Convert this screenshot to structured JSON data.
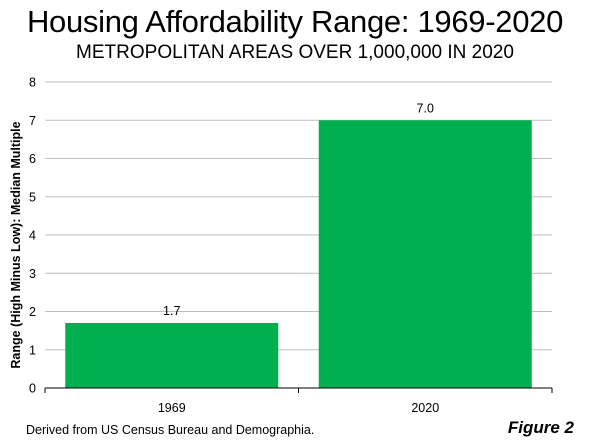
{
  "figure": {
    "source_note": "Derived from US Census Bureau and Demographia.",
    "figure_label": "Figure 2"
  },
  "chart_data": {
    "type": "bar",
    "title": "Housing Affordability Range: 1969-2020",
    "subtitle": "METROPOLITAN AREAS OVER 1,000,000 IN 2020",
    "xlabel": "",
    "ylabel": "Range (High Minus Low):  Median Multiple",
    "categories": [
      "1969",
      "2020"
    ],
    "values": [
      1.7,
      7.0
    ],
    "data_labels": [
      "1.7",
      "7.0"
    ],
    "ylim": [
      0,
      8
    ],
    "yticks": [
      0,
      1,
      2,
      3,
      4,
      5,
      6,
      7,
      8
    ],
    "grid": true,
    "legend": "none",
    "bar_color": "#00b050",
    "grid_color": "#bfbfbf",
    "axis_color": "#000000"
  }
}
